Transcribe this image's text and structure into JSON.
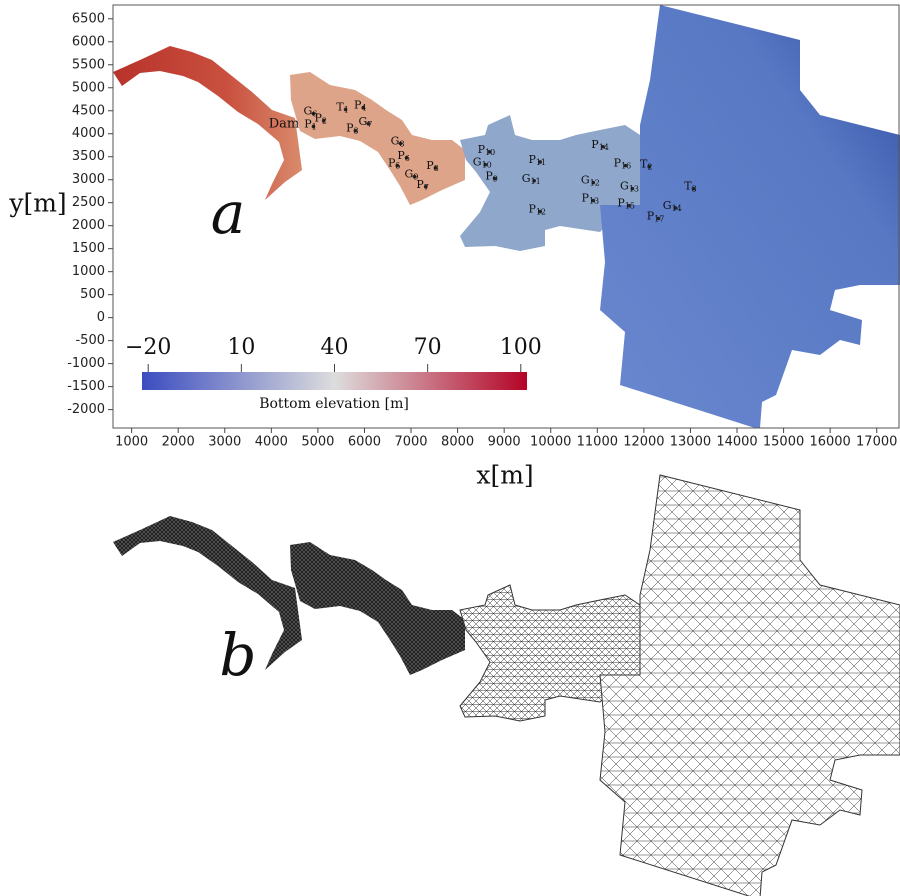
{
  "chart_data": {
    "type": "scatter",
    "panel_label": "a",
    "x_label": "x[m]",
    "y_label": "y[m]",
    "annotation": "Dam",
    "xlim": [
      600,
      17500
    ],
    "ylim": [
      -2400,
      6800
    ],
    "xticks": [
      1000,
      2000,
      3000,
      4000,
      5000,
      6000,
      7000,
      8000,
      9000,
      10000,
      11000,
      12000,
      13000,
      14000,
      15000,
      16000,
      17000
    ],
    "yticks": [
      -2000,
      -1500,
      -1000,
      -500,
      0,
      500,
      1000,
      1500,
      2000,
      2500,
      3000,
      3500,
      4000,
      4500,
      5000,
      5500,
      6000,
      6500
    ],
    "point_color": "#222",
    "points": [
      {
        "label": "G6",
        "x": 4840,
        "y": 4480
      },
      {
        "label": "P2",
        "x": 5060,
        "y": 4330
      },
      {
        "label": "P1",
        "x": 4840,
        "y": 4200
      },
      {
        "label": "T1",
        "x": 5530,
        "y": 4570
      },
      {
        "label": "P4",
        "x": 5910,
        "y": 4610
      },
      {
        "label": "G7",
        "x": 6020,
        "y": 4260
      },
      {
        "label": "P3",
        "x": 5740,
        "y": 4110
      },
      {
        "label": "G8",
        "x": 6710,
        "y": 3830
      },
      {
        "label": "P6",
        "x": 6840,
        "y": 3520
      },
      {
        "label": "P5",
        "x": 6640,
        "y": 3350
      },
      {
        "label": "G9",
        "x": 7010,
        "y": 3110
      },
      {
        "label": "P7",
        "x": 7250,
        "y": 2890
      },
      {
        "label": "P8",
        "x": 7460,
        "y": 3300
      },
      {
        "label": "P10",
        "x": 8620,
        "y": 3650
      },
      {
        "label": "G10",
        "x": 8530,
        "y": 3370
      },
      {
        "label": "P9",
        "x": 8730,
        "y": 3070
      },
      {
        "label": "P11",
        "x": 9710,
        "y": 3430
      },
      {
        "label": "G11",
        "x": 9580,
        "y": 3020
      },
      {
        "label": "P12",
        "x": 9710,
        "y": 2350
      },
      {
        "label": "P14",
        "x": 11060,
        "y": 3760
      },
      {
        "label": "P16",
        "x": 11540,
        "y": 3350
      },
      {
        "label": "T2",
        "x": 12050,
        "y": 3330
      },
      {
        "label": "G12",
        "x": 10850,
        "y": 2980
      },
      {
        "label": "P13",
        "x": 10850,
        "y": 2590
      },
      {
        "label": "G13",
        "x": 11690,
        "y": 2850
      },
      {
        "label": "P15",
        "x": 11620,
        "y": 2480
      },
      {
        "label": "T3",
        "x": 13000,
        "y": 2850
      },
      {
        "label": "P17",
        "x": 12250,
        "y": 2200
      },
      {
        "label": "G14",
        "x": 12610,
        "y": 2430
      }
    ],
    "colorbar": {
      "title": "Bottom elevation [m]",
      "clim": [
        -22,
        102
      ],
      "colors": [
        "#3b4cc0",
        "#dddddd",
        "#b40426"
      ],
      "ticks": [
        {
          "value": -20,
          "label": "−20"
        },
        10,
        40,
        70,
        100
      ]
    }
  },
  "panel_b": {
    "label": "b"
  }
}
